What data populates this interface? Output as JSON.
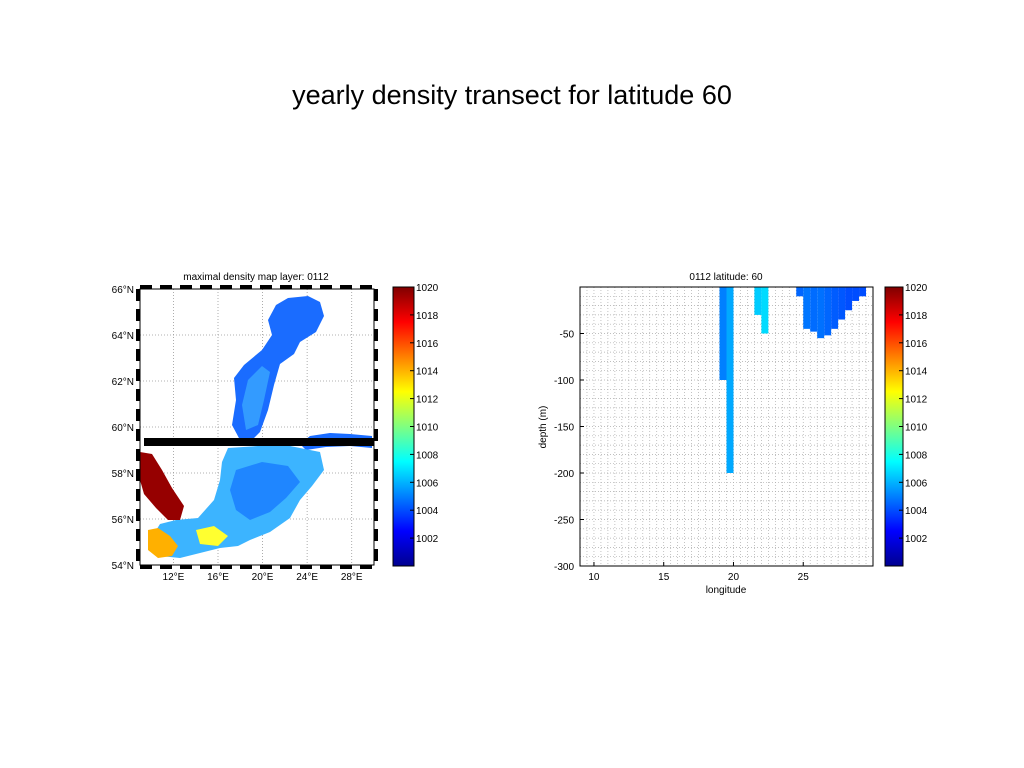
{
  "slide": {
    "title": "yearly density transect for latitude 60"
  },
  "colormap": [
    "#00008f",
    "#0000ff",
    "#0080ff",
    "#00ffff",
    "#80ff80",
    "#ffff00",
    "#ff8000",
    "#ff0000",
    "#800000"
  ],
  "chart_data": [
    {
      "type": "heatmap",
      "title": "maximal density map layer: 0112",
      "x_tick_labels": [
        "12°E",
        "16°E",
        "20°E",
        "24°E",
        "28°E"
      ],
      "y_tick_labels": [
        "66°N",
        "64°N",
        "62°N",
        "60°N",
        "58°N",
        "56°N",
        "54°N"
      ],
      "x_range": [
        9,
        30
      ],
      "y_range": [
        54,
        66
      ],
      "transect_latitude": 60,
      "colorbar": {
        "min": 1000,
        "max": 1020,
        "ticks": [
          1020,
          1018,
          1016,
          1014,
          1012,
          1010,
          1008,
          1006,
          1004,
          1002
        ]
      },
      "grid": true
    },
    {
      "type": "heatmap",
      "title": "0112 latitude: 60",
      "xlabel": "longitude",
      "ylabel": "depth (m)",
      "xlim": [
        9,
        30
      ],
      "ylim": [
        -300,
        0
      ],
      "x_ticks": [
        10,
        15,
        20,
        25
      ],
      "y_ticks": [
        -50,
        -100,
        -150,
        -200,
        -250,
        -300
      ],
      "colorbar": {
        "min": 1000,
        "max": 1020,
        "ticks": [
          1020,
          1018,
          1016,
          1014,
          1012,
          1010,
          1008,
          1006,
          1004,
          1002
        ]
      },
      "grid": true,
      "columns": [
        {
          "lon": 19.0,
          "bottom": -100,
          "density": 1005.0
        },
        {
          "lon": 19.5,
          "bottom": -200,
          "density": 1005.8
        },
        {
          "lon": 21.5,
          "bottom": -30,
          "density": 1006.5
        },
        {
          "lon": 22.0,
          "bottom": -50,
          "density": 1006.8
        },
        {
          "lon": 24.5,
          "bottom": -10,
          "density": 1004.5
        },
        {
          "lon": 25.0,
          "bottom": -45,
          "density": 1004.8
        },
        {
          "lon": 25.5,
          "bottom": -48,
          "density": 1004.6
        },
        {
          "lon": 26.0,
          "bottom": -55,
          "density": 1004.7
        },
        {
          "lon": 26.5,
          "bottom": -52,
          "density": 1004.5
        },
        {
          "lon": 27.0,
          "bottom": -45,
          "density": 1004.3
        },
        {
          "lon": 27.5,
          "bottom": -35,
          "density": 1004.2
        },
        {
          "lon": 28.0,
          "bottom": -25,
          "density": 1004.0
        },
        {
          "lon": 28.5,
          "bottom": -15,
          "density": 1004.0
        },
        {
          "lon": 29.0,
          "bottom": -10,
          "density": 1004.0
        }
      ]
    }
  ]
}
